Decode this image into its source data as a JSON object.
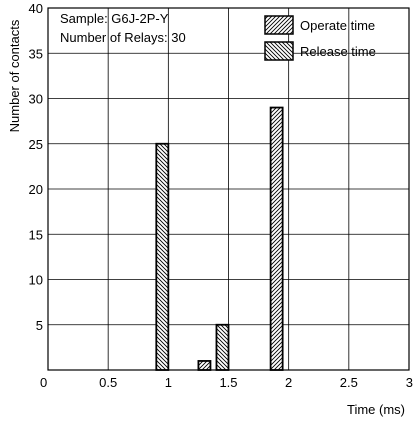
{
  "chart_data": {
    "type": "bar",
    "title": "",
    "annotations": [
      "Sample: G6J-2P-Y",
      "Number of Relays: 30"
    ],
    "xlabel": "Time (ms)",
    "ylabel": "Number of contacts",
    "xlim": [
      0,
      3
    ],
    "ylim": [
      0,
      40
    ],
    "xticks": [
      "0",
      "0.5",
      "1",
      "1.5",
      "2",
      "2.5",
      "3"
    ],
    "yticks": [
      "0",
      "5",
      "10",
      "15",
      "20",
      "25",
      "30",
      "35",
      "40"
    ],
    "grid": true,
    "legend": "top-right",
    "series": [
      {
        "name": "Operate time",
        "pattern": "hatch-forward",
        "points": [
          {
            "x": 1.3,
            "y": 1
          },
          {
            "x": 1.9,
            "y": 29
          }
        ]
      },
      {
        "name": "Release time",
        "pattern": "hatch-backward",
        "points": [
          {
            "x": 0.95,
            "y": 25
          },
          {
            "x": 1.45,
            "y": 5
          }
        ]
      }
    ]
  }
}
